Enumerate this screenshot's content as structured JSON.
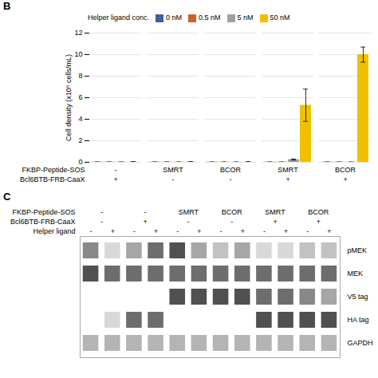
{
  "chart_data": [
    {
      "type": "bar",
      "title": "B",
      "ylabel": "Cell density (x10⁵ cells/mL)",
      "x_label_rows": [
        {
          "name": "FKBP-Peptide-SOS",
          "labels": [
            "-",
            "SMRT",
            "BCOR",
            "SMRT",
            "BCOR"
          ]
        },
        {
          "name": "Bcl6BTB-FRB-CaaX",
          "labels": [
            "+",
            "-",
            "-",
            "+",
            "+"
          ]
        }
      ],
      "series": [
        {
          "name": "0 nM",
          "color": "#3F5FA0",
          "values": [
            0.02,
            0.02,
            0.02,
            0.02,
            0.02
          ],
          "errors": [
            0.01,
            0.01,
            0.01,
            0.01,
            0.01
          ]
        },
        {
          "name": "0.5 nM",
          "color": "#C8612C",
          "values": [
            0.02,
            0.02,
            0.02,
            0.02,
            0.02
          ],
          "errors": [
            0.01,
            0.01,
            0.01,
            0.01,
            0.01
          ]
        },
        {
          "name": "5 nM",
          "color": "#A0A0A0",
          "values": [
            0.02,
            0.02,
            0.02,
            0.25,
            0.02
          ],
          "errors": [
            0.01,
            0.01,
            0.01,
            0.05,
            0.01
          ]
        },
        {
          "name": "50 nM",
          "color": "#F0C000",
          "values": [
            0.02,
            0.02,
            0.02,
            5.3,
            10.0
          ],
          "errors": [
            0.05,
            0.05,
            0.05,
            1.5,
            0.7
          ]
        }
      ],
      "ylim": [
        0,
        12
      ],
      "yticks": [
        0,
        2,
        4,
        6,
        8,
        10,
        12
      ],
      "grid": true,
      "legend": "upper left",
      "legend_title": "Helper ligand conc."
    },
    {
      "type": "heatmap",
      "title": "C",
      "header_rows": [
        {
          "name": "FKBP-Peptide-SOS",
          "labels": [
            "-",
            "-",
            "SMRT",
            "BCOR",
            "SMRT",
            "BCOR"
          ]
        },
        {
          "name": "Bcl6BTB-FRB-CaaX",
          "labels": [
            "-",
            "+",
            "-",
            "-",
            "+",
            "+"
          ]
        },
        {
          "name": "Helper ligand",
          "labels": [
            "-",
            "+",
            "-",
            "+",
            "-",
            "+",
            "-",
            "+",
            "-",
            "+",
            "-",
            "+"
          ]
        }
      ],
      "rows": [
        "pMEK",
        "MEK",
        "V5 tag",
        "HA tag",
        "GAPDH"
      ],
      "cells": [
        [
          0.55,
          0.25,
          0.45,
          0.65,
          0.75,
          0.45,
          0.35,
          0.45,
          0.25,
          0.25,
          0.35,
          0.35
        ],
        [
          0.75,
          0.65,
          0.65,
          0.65,
          0.65,
          0.65,
          0.65,
          0.65,
          0.65,
          0.65,
          0.65,
          0.65
        ],
        [
          0.0,
          0.0,
          0.0,
          0.0,
          0.75,
          0.75,
          0.75,
          0.75,
          0.65,
          0.65,
          0.55,
          0.45
        ],
        [
          0.0,
          0.25,
          0.65,
          0.65,
          0.0,
          0.0,
          0.0,
          0.0,
          0.75,
          0.75,
          0.75,
          0.75
        ],
        [
          0.4,
          0.4,
          0.4,
          0.4,
          0.4,
          0.4,
          0.4,
          0.4,
          0.4,
          0.4,
          0.4,
          0.4
        ]
      ],
      "intensity_range": [
        0,
        1
      ]
    }
  ]
}
